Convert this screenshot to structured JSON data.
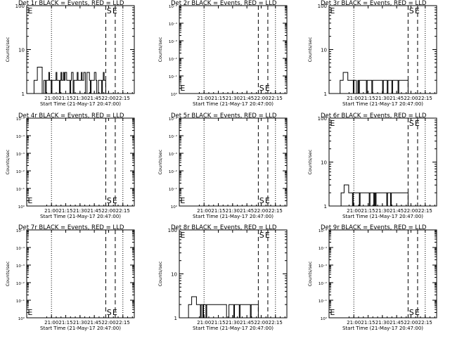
{
  "figure": {
    "background": "#ffffff",
    "ink": "#000000"
  },
  "chart_data": [
    {
      "type": "line",
      "title": "Det 1r BLACK = Events, RED = LLD",
      "xlabel": "Start Time (21-May-17 20:47:00)",
      "ylabel": "Counts/sec",
      "xticks": [
        "21:00",
        "21:15",
        "21:30",
        "21:45",
        "22:00",
        "22:15"
      ],
      "yscale": "linear-log",
      "yticks": [
        "1",
        "10",
        "100"
      ],
      "x_range_min": [
        -13,
        100
      ],
      "y_range_log10": [
        0,
        2
      ],
      "dotted_vlines_min": [
        13,
        88
      ],
      "dashed_vlines_min": [
        70,
        80
      ],
      "start_end_marks": [
        {
          "text": "S",
          "x_min": 71,
          "pos": "top"
        },
        {
          "text": "E",
          "x_min": 77,
          "pos": "top"
        },
        {
          "text": "E",
          "x_min": -12,
          "pos": "top"
        }
      ],
      "series": [
        {
          "style": "step",
          "x_start_min": -7,
          "x_end_min": 70,
          "levels": [
            0.0,
            0.3,
            0.6,
            0.3,
            0.48,
            0.3,
            0.48
          ],
          "noisy": true
        }
      ]
    },
    {
      "type": "line",
      "title": "Det 2r BLACK = Events, RED = LLD",
      "xlabel": "Start Time (21-May-17 20:47:00)",
      "ylabel": "Counts/sec",
      "xticks": [
        "21:00",
        "21:15",
        "21:30",
        "21:45",
        "22:00",
        "22:15"
      ],
      "yscale": "log",
      "yticks": [
        "10⁰",
        "10⁻¹",
        "10⁻²",
        "10⁻³",
        "10⁻⁴",
        "10⁻⁵"
      ],
      "x_range_min": [
        -13,
        100
      ],
      "y_range_log10": [
        0,
        -5
      ],
      "dotted_vlines_min": [
        13,
        88
      ],
      "dashed_vlines_min": [
        70,
        80
      ],
      "start_end_marks": [
        {
          "text": "S",
          "x_min": 71,
          "pos": "bottom"
        },
        {
          "text": "E",
          "x_min": 77,
          "pos": "bottom"
        },
        {
          "text": "E",
          "x_min": -12,
          "pos": "bottom"
        }
      ],
      "series": []
    },
    {
      "type": "line",
      "title": "Det 3r BLACK = Events, RED = LLD",
      "xlabel": "Start Time (21-May-17 20:47:00)",
      "ylabel": "Counts/sec",
      "xticks": [
        "21:00",
        "21:15",
        "21:30",
        "21:45",
        "22:00",
        "22:15"
      ],
      "yscale": "linear-log",
      "yticks": [
        "1",
        "10",
        "100"
      ],
      "x_range_min": [
        -13,
        100
      ],
      "y_range_log10": [
        0,
        2
      ],
      "dotted_vlines_min": [
        13,
        88
      ],
      "dashed_vlines_min": [
        70,
        80
      ],
      "start_end_marks": [
        {
          "text": "S",
          "x_min": 71,
          "pos": "top"
        },
        {
          "text": "E",
          "x_min": 77,
          "pos": "top"
        },
        {
          "text": "E",
          "x_min": -12,
          "pos": "top"
        }
      ],
      "series": [
        {
          "style": "step",
          "x_start_min": -3,
          "x_end_min": 70,
          "levels": [
            0.0,
            0.3,
            0.48,
            0.3,
            0.48,
            0.3
          ],
          "noisy": true
        }
      ]
    },
    {
      "type": "line",
      "title": "Det 4r BLACK = Events, RED = LLD",
      "xlabel": "Start Time (21-May-17 20:47:00)",
      "ylabel": "Counts/sec",
      "xticks": [
        "21:00",
        "21:15",
        "21:30",
        "21:45",
        "22:00",
        "22:15"
      ],
      "yscale": "log",
      "yticks": [
        "10⁰",
        "10⁻¹",
        "10⁻²",
        "10⁻³",
        "10⁻⁴",
        "10⁻⁵"
      ],
      "x_range_min": [
        -13,
        100
      ],
      "y_range_log10": [
        0,
        -5
      ],
      "dotted_vlines_min": [
        13,
        88
      ],
      "dashed_vlines_min": [
        70,
        80
      ],
      "start_end_marks": [
        {
          "text": "S",
          "x_min": 71,
          "pos": "bottom"
        },
        {
          "text": "E",
          "x_min": 77,
          "pos": "bottom"
        },
        {
          "text": "E",
          "x_min": -12,
          "pos": "bottom"
        }
      ],
      "series": []
    },
    {
      "type": "line",
      "title": "Det 5r BLACK = Events, RED = LLD",
      "xlabel": "Start Time (21-May-17 20:47:00)",
      "ylabel": "Counts/sec",
      "xticks": [
        "21:00",
        "21:15",
        "21:30",
        "21:45",
        "22:00",
        "22:15"
      ],
      "yscale": "log",
      "yticks": [
        "10⁰",
        "10⁻¹",
        "10⁻²",
        "10⁻³",
        "10⁻⁴",
        "10⁻⁵"
      ],
      "x_range_min": [
        -13,
        100
      ],
      "y_range_log10": [
        0,
        -5
      ],
      "dotted_vlines_min": [
        13,
        88
      ],
      "dashed_vlines_min": [
        70,
        80
      ],
      "start_end_marks": [
        {
          "text": "S",
          "x_min": 71,
          "pos": "bottom"
        },
        {
          "text": "E",
          "x_min": 77,
          "pos": "bottom"
        },
        {
          "text": "E",
          "x_min": -12,
          "pos": "bottom"
        }
      ],
      "series": []
    },
    {
      "type": "line",
      "title": "Det 6r BLACK = Events, RED = LLD",
      "xlabel": "Start Time (21-May-17 20:47:00)",
      "ylabel": "Counts/sec",
      "xticks": [
        "21:00",
        "21:15",
        "21:30",
        "21:45",
        "22:00",
        "22:15"
      ],
      "yscale": "linear-log",
      "yticks": [
        "1",
        "10",
        "100"
      ],
      "x_range_min": [
        -13,
        100
      ],
      "y_range_log10": [
        0,
        2
      ],
      "dotted_vlines_min": [
        13,
        88
      ],
      "dashed_vlines_min": [
        70,
        80
      ],
      "start_end_marks": [
        {
          "text": "S",
          "x_min": 71,
          "pos": "top"
        },
        {
          "text": "E",
          "x_min": 77,
          "pos": "top"
        },
        {
          "text": "E",
          "x_min": -12,
          "pos": "top"
        }
      ],
      "series": [
        {
          "style": "step",
          "x_start_min": -2,
          "x_end_min": 70,
          "levels": [
            0.0,
            0.3,
            0.48,
            0.3,
            0.48,
            0.3
          ],
          "noisy": true
        }
      ]
    },
    {
      "type": "line",
      "title": "Det 7r BLACK = Events, RED = LLD",
      "xlabel": "Start Time (21-May-17 20:47:00)",
      "ylabel": "Counts/sec",
      "xticks": [
        "21:00",
        "21:15",
        "21:30",
        "21:45",
        "22:00",
        "22:15"
      ],
      "yscale": "log",
      "yticks": [
        "10⁰",
        "10⁻¹",
        "10⁻²",
        "10⁻³",
        "10⁻⁴",
        "10⁻⁵"
      ],
      "x_range_min": [
        -13,
        100
      ],
      "y_range_log10": [
        0,
        -5
      ],
      "dotted_vlines_min": [
        13,
        88
      ],
      "dashed_vlines_min": [
        70,
        80
      ],
      "start_end_marks": [
        {
          "text": "S",
          "x_min": 71,
          "pos": "bottom"
        },
        {
          "text": "E",
          "x_min": 77,
          "pos": "bottom"
        },
        {
          "text": "E",
          "x_min": -12,
          "pos": "bottom"
        }
      ],
      "series": []
    },
    {
      "type": "line",
      "title": "Det 8r BLACK = Events, RED = LLD",
      "xlabel": "Start Time (21-May-17 20:47:00)",
      "ylabel": "Counts/sec",
      "xticks": [
        "21:00",
        "21:15",
        "21:30",
        "21:45",
        "22:00",
        "22:15"
      ],
      "yscale": "linear-log",
      "yticks": [
        "1",
        "10",
        "100"
      ],
      "x_range_min": [
        -13,
        100
      ],
      "y_range_log10": [
        0,
        2
      ],
      "dotted_vlines_min": [
        13,
        88
      ],
      "dashed_vlines_min": [
        70,
        80
      ],
      "start_end_marks": [
        {
          "text": "S",
          "x_min": 71,
          "pos": "top"
        },
        {
          "text": "E",
          "x_min": 77,
          "pos": "top"
        },
        {
          "text": "E",
          "x_min": -12,
          "pos": "top"
        }
      ],
      "series": [
        {
          "style": "step",
          "x_start_min": -5,
          "x_end_min": 70,
          "levels": [
            0.0,
            0.3,
            0.48,
            0.3,
            0.48,
            0.3
          ],
          "noisy": true
        }
      ]
    },
    {
      "type": "line",
      "title": "Det 9r BLACK = Events, RED = LLD",
      "xlabel": "Start Time (21-May-17 20:47:00)",
      "ylabel": "Counts/sec",
      "xticks": [
        "21:00",
        "21:15",
        "21:30",
        "21:45",
        "22:00",
        "22:15"
      ],
      "yscale": "log",
      "yticks": [
        "10⁰",
        "10⁻¹",
        "10⁻²",
        "10⁻³",
        "10⁻⁴",
        "10⁻⁵"
      ],
      "x_range_min": [
        -13,
        100
      ],
      "y_range_log10": [
        0,
        -5
      ],
      "dotted_vlines_min": [
        13,
        88
      ],
      "dashed_vlines_min": [
        70,
        80
      ],
      "start_end_marks": [
        {
          "text": "S",
          "x_min": 71,
          "pos": "bottom"
        },
        {
          "text": "E",
          "x_min": 77,
          "pos": "bottom"
        },
        {
          "text": "E",
          "x_min": -12,
          "pos": "bottom"
        }
      ],
      "series": []
    }
  ]
}
